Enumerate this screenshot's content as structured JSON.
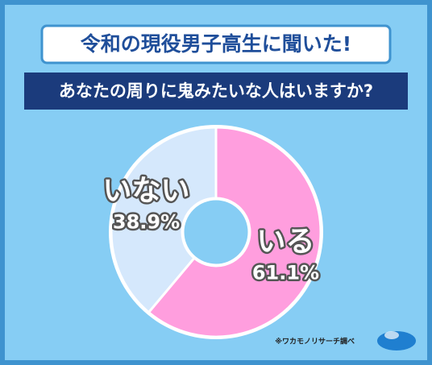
{
  "chart_data": {
    "type": "donut",
    "title": "令和の現役男子高生に聞いた!",
    "subtitle": "あなたの周りに鬼みたいな人はいますか?",
    "categories": [
      "いる",
      "いない"
    ],
    "values": [
      61.1,
      38.9
    ],
    "value_labels": [
      "61.1%",
      "38.9%"
    ],
    "colors": [
      "#ff9ede",
      "#d5e8fc"
    ],
    "source": "※ワカモノリサーチ調べ"
  }
}
